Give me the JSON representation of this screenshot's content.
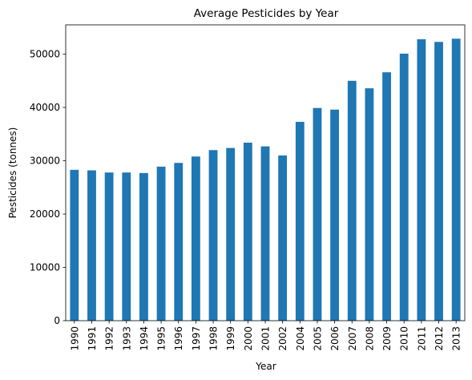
{
  "chart_data": {
    "type": "bar",
    "title": "Average Pesticides by Year",
    "xlabel": "Year",
    "ylabel": "Pesticides (tonnes)",
    "categories": [
      "1990",
      "1991",
      "1992",
      "1993",
      "1994",
      "1995",
      "1996",
      "1997",
      "1998",
      "1999",
      "2000",
      "2001",
      "2002",
      "2004",
      "2005",
      "2006",
      "2007",
      "2008",
      "2009",
      "2010",
      "2011",
      "2012",
      "2013"
    ],
    "values": [
      28300,
      28200,
      27800,
      27800,
      27700,
      28900,
      29600,
      30800,
      32000,
      32400,
      33400,
      32700,
      31000,
      37300,
      39900,
      39600,
      45000,
      43600,
      46600,
      50100,
      52800,
      52300,
      52900
    ],
    "ylim": [
      0,
      55500
    ],
    "yticks": [
      0,
      10000,
      20000,
      30000,
      40000,
      50000
    ],
    "ytick_labels": [
      "0",
      "10000",
      "20000",
      "30000",
      "40000",
      "50000"
    ],
    "bar_color": "#1f77b4",
    "grid": false,
    "legend": "none"
  }
}
